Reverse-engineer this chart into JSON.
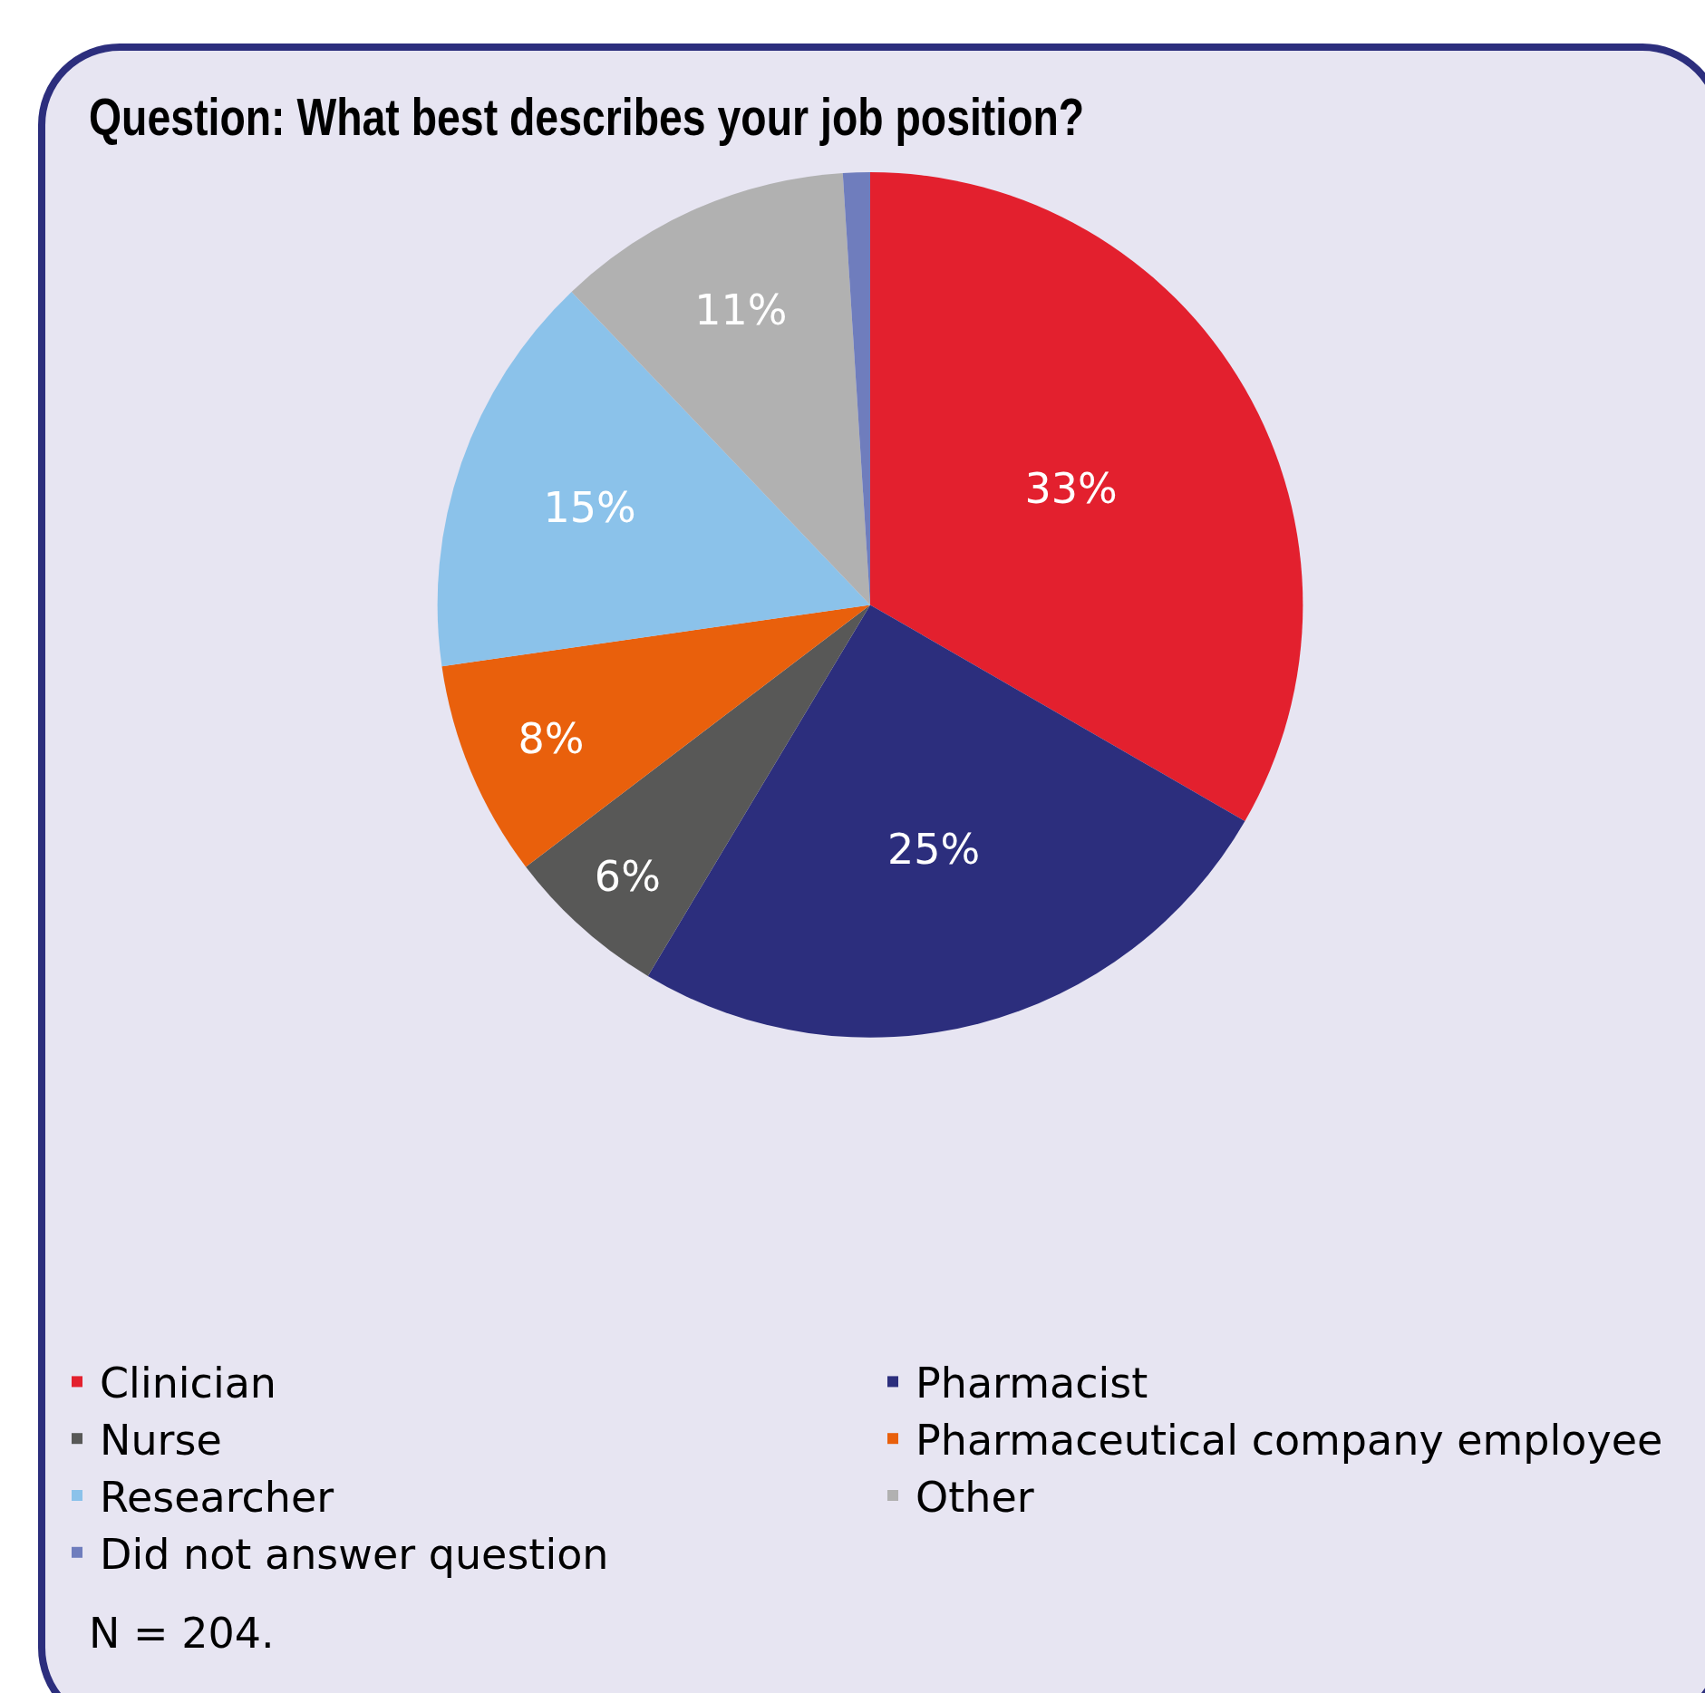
{
  "chart_data": {
    "type": "pie",
    "title": "Question: What best describes your job position?",
    "categories": [
      "Clinician",
      "Pharmacist",
      "Nurse",
      "Pharmaceutical company employee",
      "Researcher",
      "Other",
      "Did not answer question"
    ],
    "values": [
      33,
      25,
      6,
      8,
      15,
      11,
      1
    ],
    "value_labels": [
      "33%",
      "25%",
      "6%",
      "8%",
      "15%",
      "11%",
      null
    ],
    "colors": [
      "#e3202e",
      "#2c2e7d",
      "#585857",
      "#e9600c",
      "#8bc2ea",
      "#b1b1b1",
      "#6f7dbd"
    ],
    "legend": "bottom",
    "annotations": [
      "N = 204."
    ]
  }
}
